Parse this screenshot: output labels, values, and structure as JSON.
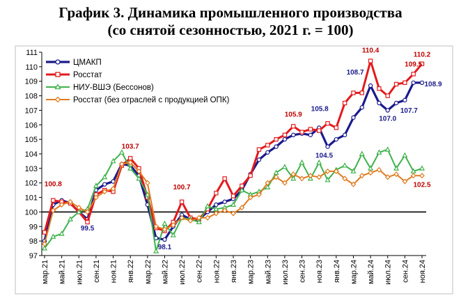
{
  "title_line1": "График 3. Динамика промышленного производства",
  "title_line2": "(со снятой сезонностью, 2021 г. = 100)",
  "chart_data": {
    "type": "line",
    "title": "График 3. Динамика промышленного производства (со снятой сезонностью, 2021 г. = 100)",
    "ylim": [
      97,
      111
    ],
    "yticks": [
      97,
      98,
      99,
      100,
      101,
      102,
      103,
      104,
      105,
      106,
      107,
      108,
      109,
      110,
      111
    ],
    "reference_line": 100,
    "x_tick_labels": [
      "мар.21",
      "май.21",
      "июл.21",
      "сен.21",
      "ноя.21",
      "янв.22",
      "мар.22",
      "май.22",
      "июл.22",
      "сен.22",
      "ноя.22",
      "янв.23",
      "мар.23",
      "май.23",
      "июл.23",
      "сен.23",
      "ноя.23",
      "янв.24",
      "мар.24",
      "май.24",
      "июл.24",
      "сен.24",
      "ноя.24"
    ],
    "x": [
      "мар.21",
      "апр.21",
      "май.21",
      "июн.21",
      "июл.21",
      "авг.21",
      "сен.21",
      "окт.21",
      "ноя.21",
      "дек.21",
      "янв.22",
      "фев.22",
      "мар.22",
      "апр.22",
      "май.22",
      "июн.22",
      "июл.22",
      "авг.22",
      "сен.22",
      "окт.22",
      "ноя.22",
      "дек.22",
      "янв.23",
      "фев.23",
      "мар.23",
      "апр.23",
      "май.23",
      "июн.23",
      "июл.23",
      "авг.23",
      "сен.23",
      "окт.23",
      "ноя.23",
      "дек.23",
      "янв.24",
      "фев.24",
      "мар.24",
      "апр.24",
      "май.24",
      "июн.24",
      "июл.24",
      "авг.24",
      "сен.24",
      "окт.24",
      "ноя.24"
    ],
    "legend_position": "top-left",
    "grid": false,
    "series": [
      {
        "name": "ЦМАКП",
        "color": "#1a1a8c",
        "marker": "circle",
        "values": [
          98.0,
          100.5,
          100.8,
          100.6,
          100.0,
          99.5,
          101.5,
          101.9,
          102.1,
          103.3,
          103.2,
          102.5,
          100.5,
          98.2,
          98.1,
          99.0,
          99.8,
          99.5,
          99.5,
          100.0,
          100.5,
          100.7,
          100.9,
          101.5,
          102.6,
          103.6,
          104.1,
          104.5,
          105.0,
          105.3,
          105.4,
          105.3,
          105.8,
          104.5,
          105.0,
          105.3,
          106.5,
          107.2,
          108.7,
          107.5,
          107.0,
          107.5,
          107.7,
          108.9,
          108.9
        ]
      },
      {
        "name": "Росстат",
        "color": "#e31a1c",
        "marker": "square",
        "values": [
          98.6,
          100.8,
          100.7,
          100.6,
          100.0,
          99.3,
          101.2,
          101.5,
          101.4,
          103.2,
          103.7,
          103.0,
          101.0,
          98.9,
          98.7,
          99.3,
          100.7,
          99.6,
          99.5,
          100.2,
          101.3,
          102.3,
          101.1,
          101.8,
          102.5,
          104.3,
          104.6,
          105.0,
          105.3,
          105.9,
          105.5,
          105.7,
          105.6,
          106.1,
          105.8,
          107.5,
          108.2,
          108.2,
          110.4,
          108.5,
          108.0,
          108.8,
          108.9,
          109.5,
          110.2
        ]
      },
      {
        "name": "НИУ-ВШЭ (Бессонов)",
        "color": "#3fb24b",
        "marker": "triangle",
        "values": [
          97.5,
          98.3,
          98.5,
          99.5,
          100.0,
          100.2,
          101.8,
          102.4,
          103.5,
          104.1,
          103.0,
          102.3,
          101.2,
          97.3,
          99.2,
          98.4,
          99.6,
          99.5,
          99.3,
          100.4,
          100.2,
          100.3,
          100.5,
          101.5,
          101.2,
          101.4,
          101.7,
          102.7,
          103.1,
          102.3,
          103.4,
          102.3,
          103.4,
          102.2,
          102.9,
          103.2,
          102.8,
          104.0,
          103.0,
          104.1,
          104.3,
          103.0,
          103.9,
          102.8,
          103.0
        ]
      },
      {
        "name": "Росстат (без отраслей с продукцией ОПК)",
        "color": "#e07b1f",
        "marker": "diamond",
        "values": [
          97.8,
          100.1,
          100.5,
          100.7,
          100.3,
          100.0,
          101.0,
          101.4,
          101.6,
          103.3,
          103.4,
          102.8,
          102.0,
          99.0,
          98.8,
          99.1,
          99.6,
          99.4,
          99.6,
          99.6,
          99.9,
          100.1,
          99.9,
          100.3,
          101.0,
          101.2,
          102.0,
          102.4,
          102.0,
          102.6,
          102.3,
          102.5,
          102.4,
          102.8,
          102.8,
          102.3,
          101.9,
          102.5,
          102.7,
          102.9,
          102.4,
          102.6,
          102.1,
          102.5,
          102.5
        ]
      }
    ],
    "annotations": [
      "100.8",
      "99.5",
      "103.7",
      "98.1",
      "100.7",
      "105.9",
      "105.8",
      "104.5",
      "108.7",
      "110.4",
      "107.0",
      "107.7",
      "109.5",
      "110.2",
      "108.9",
      "102.5"
    ]
  },
  "legend": {
    "item1": "ЦМАКП",
    "item2": "Росстат",
    "item3": "НИУ-ВШЭ (Бессонов)",
    "item4": "Росстат (без отраслей с продукцией ОПК)"
  }
}
